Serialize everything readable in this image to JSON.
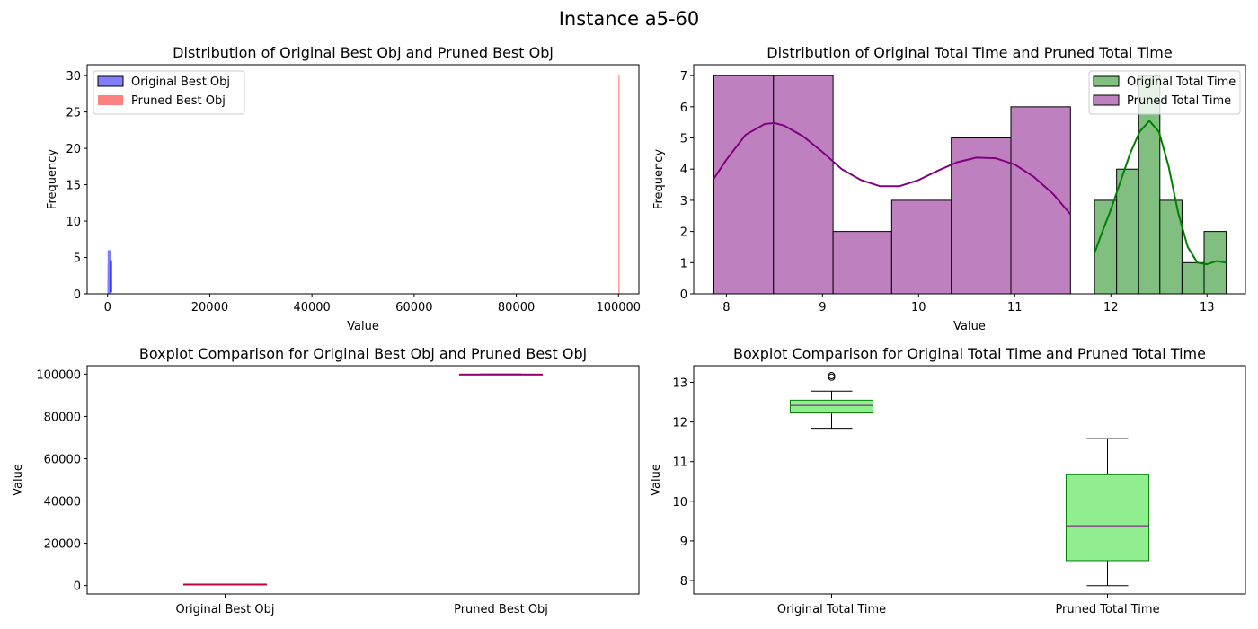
{
  "figure_title": "Instance a5-60",
  "chart_data": [
    {
      "type": "histogram",
      "title": "Distribution of Original Best Obj and Pruned Best Obj",
      "xlabel": "Value",
      "ylabel": "Frequency",
      "xlim": [
        -4000,
        104000
      ],
      "ylim": [
        0,
        31.5
      ],
      "xticks": [
        0,
        20000,
        40000,
        60000,
        80000,
        100000
      ],
      "yticks": [
        0,
        5,
        10,
        15,
        20,
        25,
        30
      ],
      "legend_position": "upper-left",
      "series": [
        {
          "name": "Original Best Obj",
          "color": "#0000ff",
          "fill": "#8080ff",
          "bins": [
            [
              660,
              1,
              2
            ],
            [
              661,
              2,
              4
            ],
            [
              662,
              3,
              6
            ],
            [
              663,
              4,
              3
            ]
          ],
          "kde": {
            "x": [
              650,
              655,
              660,
              662,
              664,
              668,
              675
            ],
            "y": [
              0.2,
              2.5,
              4.3,
              4.6,
              4.3,
              2.0,
              0.2
            ]
          }
        },
        {
          "name": "Pruned Best Obj",
          "color": "#ff0000",
          "fill": "#ff8080",
          "bins": [
            [
              100000,
              100000,
              30
            ]
          ]
        }
      ]
    },
    {
      "type": "histogram",
      "title": "Distribution of Original Total Time and Pruned Total Time",
      "xlabel": "Value",
      "ylabel": "Frequency",
      "xlim": [
        7.66,
        13.4
      ],
      "ylim": [
        0,
        7.35
      ],
      "xticks": [
        8,
        9,
        10,
        11,
        12,
        13
      ],
      "yticks": [
        0,
        1,
        2,
        3,
        4,
        5,
        6,
        7
      ],
      "legend_position": "upper-right",
      "series": [
        {
          "name": "Original Total Time",
          "color": "#008000",
          "fill": "#80bf80",
          "bins": [
            [
              11.83,
              12.06,
              3
            ],
            [
              12.06,
              12.29,
              4
            ],
            [
              12.29,
              12.51,
              7
            ],
            [
              12.51,
              12.74,
              3
            ],
            [
              12.74,
              12.97,
              1
            ],
            [
              12.97,
              13.2,
              2
            ]
          ],
          "kde": {
            "x": [
              11.83,
              11.9,
              12.0,
              12.1,
              12.2,
              12.3,
              12.4,
              12.5,
              12.6,
              12.7,
              12.8,
              12.9,
              13.0,
              13.1,
              13.2
            ],
            "y": [
              1.3,
              1.9,
              2.7,
              3.6,
              4.5,
              5.2,
              5.55,
              5.2,
              4.1,
              2.6,
              1.5,
              1.0,
              0.95,
              1.05,
              1.0
            ]
          }
        },
        {
          "name": "Pruned Total Time",
          "color": "#800080",
          "fill": "#bf80bf",
          "bins": [
            [
              7.87,
              8.49,
              7
            ],
            [
              8.49,
              9.11,
              7
            ],
            [
              9.11,
              9.72,
              2
            ],
            [
              9.72,
              10.34,
              3
            ],
            [
              10.34,
              10.96,
              5
            ],
            [
              10.96,
              11.58,
              6
            ]
          ],
          "kde": {
            "x": [
              7.87,
              8.0,
              8.2,
              8.4,
              8.5,
              8.6,
              8.8,
              9.0,
              9.2,
              9.4,
              9.6,
              9.8,
              10.0,
              10.2,
              10.4,
              10.6,
              10.8,
              11.0,
              11.2,
              11.4,
              11.58
            ],
            "y": [
              3.7,
              4.3,
              5.1,
              5.45,
              5.48,
              5.4,
              5.05,
              4.55,
              4.0,
              3.65,
              3.45,
              3.45,
              3.65,
              3.95,
              4.22,
              4.37,
              4.35,
              4.15,
              3.75,
              3.2,
              2.55
            ]
          }
        }
      ]
    },
    {
      "type": "boxplot",
      "title": "Boxplot Comparison for Original Best Obj and Pruned Best Obj",
      "ylabel": "Value",
      "ylim": [
        -4000,
        104000
      ],
      "yticks": [
        0,
        20000,
        40000,
        60000,
        80000,
        100000
      ],
      "categories": [
        "Original Best Obj",
        "Pruned Best Obj"
      ],
      "box_color": "#ff0000",
      "box_fill": "#ffc0cb",
      "median_color": "#800080",
      "boxes": [
        {
          "label": "Original Best Obj",
          "whislo": 658,
          "q1": 660,
          "med": 662,
          "q3": 664,
          "whishi": 666,
          "fliers": []
        },
        {
          "label": "Pruned Best Obj",
          "whislo": 100000,
          "q1": 100000,
          "med": 100000,
          "q3": 100000,
          "whishi": 100000,
          "fliers": []
        }
      ]
    },
    {
      "type": "boxplot",
      "title": "Boxplot Comparison for Original Total Time and Pruned Total Time",
      "ylabel": "Value",
      "ylim": [
        7.66,
        13.42
      ],
      "yticks": [
        8,
        9,
        10,
        11,
        12,
        13
      ],
      "categories": [
        "Original Total Time",
        "Pruned Total Time"
      ],
      "box_color": "#008000",
      "box_fill": "#90ee90",
      "median_color": "#800080",
      "boxes": [
        {
          "label": "Original Total Time",
          "whislo": 11.84,
          "q1": 12.23,
          "med": 12.42,
          "q3": 12.55,
          "whishi": 12.78,
          "fliers": [
            13.13,
            13.17
          ]
        },
        {
          "label": "Pruned Total Time",
          "whislo": 7.87,
          "q1": 8.5,
          "med": 9.38,
          "q3": 10.67,
          "whishi": 11.58,
          "fliers": []
        }
      ]
    }
  ]
}
